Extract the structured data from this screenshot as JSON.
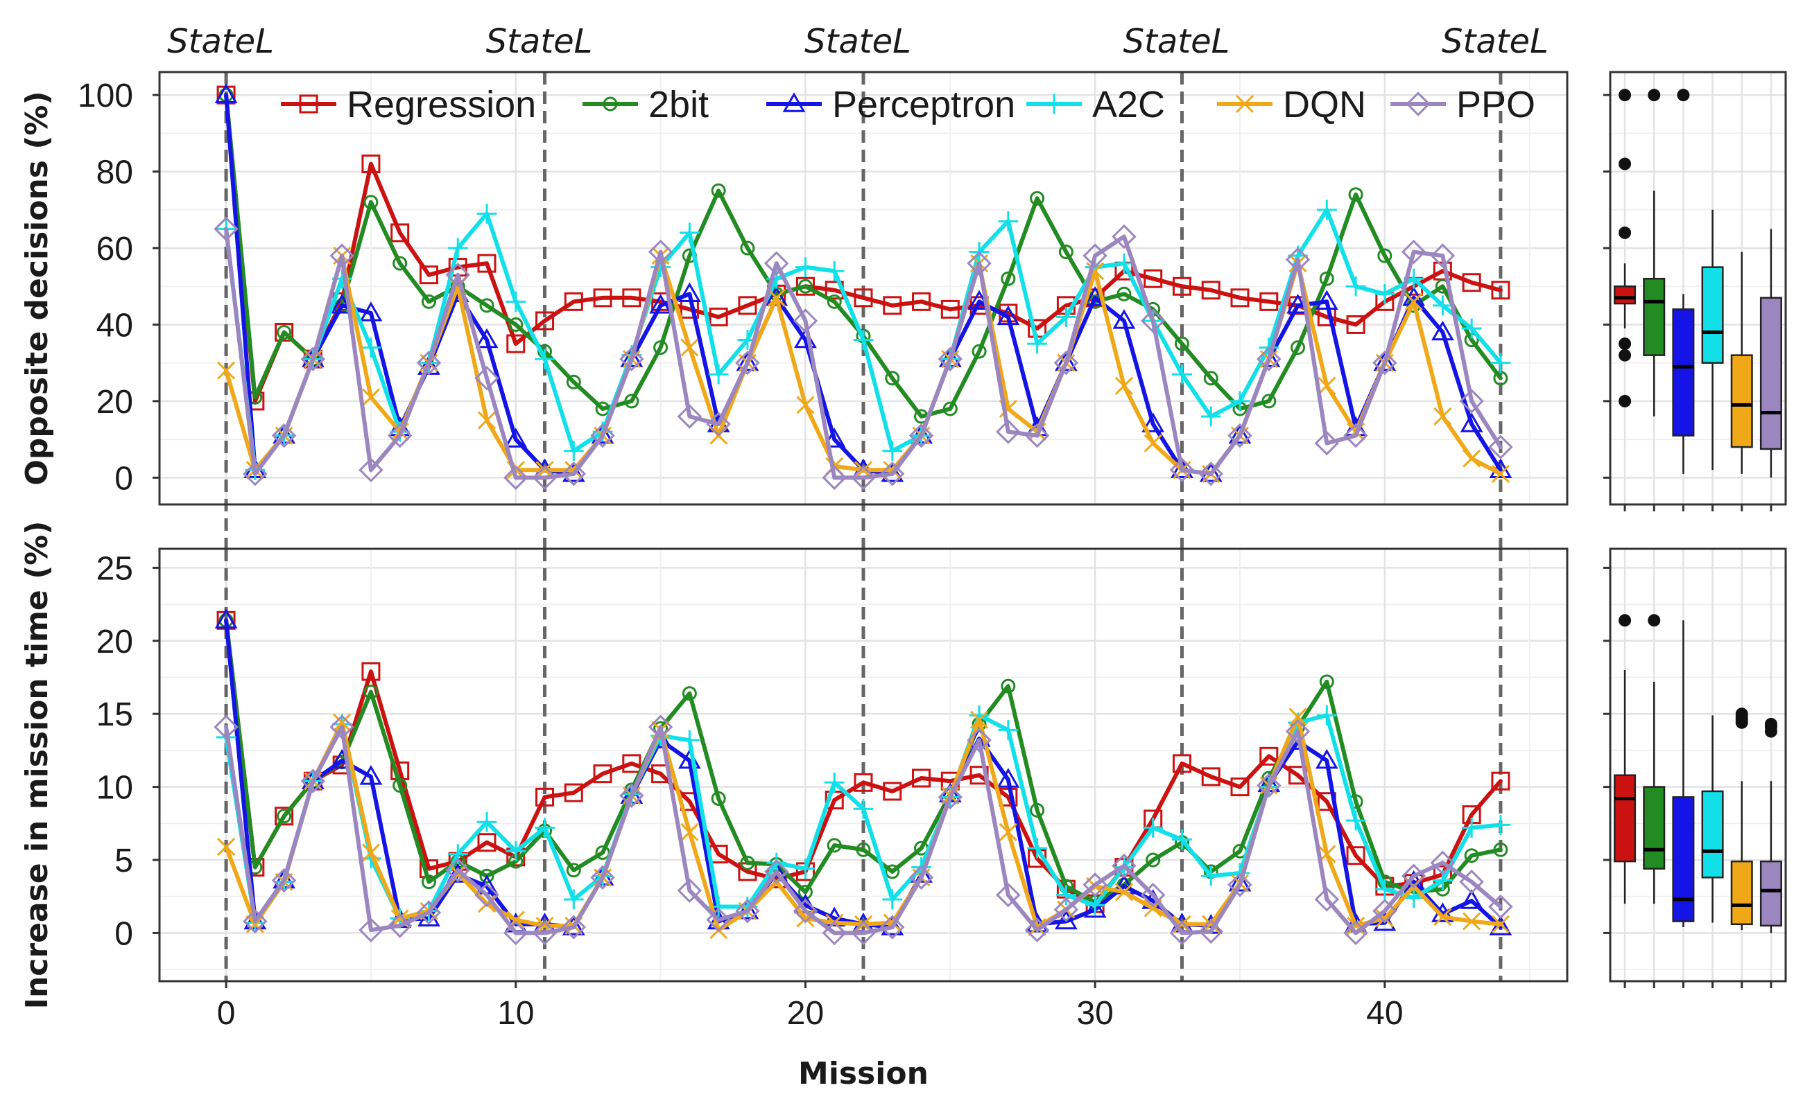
{
  "chart_data": {
    "type": "line",
    "xlabel": "Mission",
    "x_ticks": [
      0,
      10,
      20,
      30,
      40
    ],
    "xlim": [
      -2.3,
      46.3
    ],
    "grid": true,
    "legend_position": "top, inside top panel",
    "state_markers": {
      "label": "StateL",
      "x": [
        0,
        11,
        22,
        33,
        44
      ],
      "line_color": "#666666",
      "line_style": "dashed"
    },
    "series_styles": [
      {
        "name": "Regression",
        "color": "#cc1111",
        "marker": "square"
      },
      {
        "name": "2bit",
        "color": "#228b22",
        "marker": "circle"
      },
      {
        "name": "Perceptron",
        "color": "#1414e6",
        "marker": "triangle"
      },
      {
        "name": "A2C",
        "color": "#12e0e8",
        "marker": "plus"
      },
      {
        "name": "DQN",
        "color": "#f0a818",
        "marker": "cross"
      },
      {
        "name": "PPO",
        "color": "#9b86c0",
        "marker": "diamond"
      }
    ],
    "panels": [
      {
        "ylabel": "Opposite decisions (%)",
        "ylim": [
          -7,
          106
        ],
        "y_ticks": [
          0,
          20,
          40,
          60,
          80,
          100
        ],
        "series": [
          {
            "name": "Regression",
            "values": [
              100,
              20,
              38,
              31,
              46,
              82,
              64,
              53,
              55,
              56,
              35,
              41,
              46,
              47,
              47,
              46,
              44,
              42,
              45,
              48,
              50,
              49,
              47,
              45,
              46,
              44,
              45,
              43,
              39,
              45,
              47,
              54,
              52,
              50,
              49,
              47,
              46,
              45,
              42,
              40,
              46,
              50,
              54,
              51,
              49
            ]
          },
          {
            "name": "2bit",
            "values": [
              100,
              21,
              38,
              31,
              45,
              72,
              56,
              46,
              50,
              45,
              40,
              33,
              25,
              18,
              20,
              34,
              58,
              75,
              60,
              48,
              50,
              46,
              37,
              26,
              16,
              18,
              33,
              52,
              73,
              59,
              46,
              48,
              44,
              35,
              26,
              18,
              20,
              34,
              52,
              74,
              58,
              45,
              50,
              36,
              26
            ]
          },
          {
            "name": "Perceptron",
            "values": [
              100,
              2,
              11,
              31,
              45,
              43,
              13,
              29,
              48,
              36,
              10,
              2,
              1,
              11,
              31,
              45,
              48,
              14,
              30,
              47,
              36,
              10,
              2,
              1,
              11,
              31,
              46,
              42,
              13,
              30,
              47,
              41,
              14,
              2,
              1,
              11,
              31,
              45,
              46,
              13,
              30,
              47,
              38,
              14,
              2
            ]
          },
          {
            "name": "A2C",
            "values": [
              65,
              2,
              11,
              31,
              52,
              34,
              12,
              30,
              60,
              69,
              46,
              31,
              7,
              12,
              32,
              55,
              64,
              27,
              36,
              52,
              55,
              54,
              36,
              7,
              11,
              31,
              59,
              67,
              35,
              42,
              55,
              56,
              41,
              27,
              16,
              20,
              34,
              58,
              70,
              50,
              48,
              52,
              45,
              39,
              30
            ]
          },
          {
            "name": "DQN",
            "values": [
              28,
              2,
              11,
              31,
              58,
              21,
              12,
              30,
              50,
              15,
              2,
              2,
              2,
              11,
              31,
              58,
              34,
              11,
              30,
              47,
              19,
              3,
              2,
              2,
              11,
              31,
              56,
              18,
              12,
              30,
              54,
              24,
              9,
              2,
              1,
              11,
              31,
              56,
              24,
              12,
              30,
              46,
              16,
              5,
              1
            ]
          },
          {
            "name": "PPO",
            "values": [
              65,
              1,
              11,
              31,
              58,
              2,
              11,
              30,
              53,
              26,
              0,
              0,
              1,
              11,
              31,
              59,
              16,
              14,
              30,
              56,
              41,
              0,
              0,
              1,
              11,
              31,
              56,
              12,
              11,
              30,
              58,
              63,
              41,
              2,
              1,
              11,
              31,
              57,
              9,
              11,
              30,
              59,
              58,
              20,
              8
            ]
          }
        ],
        "boxplots": [
          {
            "name": "Regression",
            "q1": 45.5,
            "median": 47,
            "q3": 50,
            "whisker_low": 39,
            "whisker_high": 56,
            "outliers": [
              100,
              82,
              64,
              35,
              32,
              20
            ]
          },
          {
            "name": "2bit",
            "q1": 32,
            "median": 46,
            "q3": 52,
            "whisker_low": 16,
            "whisker_high": 75,
            "outliers": [
              100
            ]
          },
          {
            "name": "Perceptron",
            "q1": 11,
            "median": 29,
            "q3": 44,
            "whisker_low": 1,
            "whisker_high": 48,
            "outliers": [
              100
            ]
          },
          {
            "name": "A2C",
            "q1": 30,
            "median": 38,
            "q3": 55,
            "whisker_low": 2,
            "whisker_high": 70,
            "outliers": []
          },
          {
            "name": "DQN",
            "q1": 8,
            "median": 19,
            "q3": 32,
            "whisker_low": 1,
            "whisker_high": 59,
            "outliers": []
          },
          {
            "name": "PPO",
            "q1": 7.5,
            "median": 17,
            "q3": 47,
            "whisker_low": 0,
            "whisker_high": 65,
            "outliers": []
          }
        ]
      },
      {
        "ylabel": "Increase in mission time (%)",
        "ylim": [
          -3.3,
          26.3
        ],
        "y_ticks": [
          0,
          5,
          10,
          15,
          20,
          25
        ],
        "series": [
          {
            "name": "Regression",
            "values": [
              21.4,
              4.5,
              8,
              10.4,
              11.5,
              17.9,
              11.1,
              4.4,
              4.9,
              6.2,
              5.2,
              9.3,
              9.6,
              10.9,
              11.6,
              10.9,
              9,
              5.4,
              4.2,
              3.7,
              4.2,
              9.1,
              10.3,
              9.7,
              10.6,
              10.4,
              10.8,
              9.3,
              5.1,
              3,
              2,
              4.5,
              7.8,
              11.6,
              10.7,
              10,
              12.1,
              10.8,
              9,
              5.3,
              3.2,
              3.4,
              4,
              8.1,
              10.4
            ]
          },
          {
            "name": "2bit",
            "values": [
              21.4,
              4.5,
              8,
              10.4,
              11.7,
              16.5,
              10.1,
              3.5,
              4.9,
              3.9,
              4.9,
              7,
              4.3,
              5.5,
              9.8,
              14,
              16.4,
              9.2,
              4.8,
              4.7,
              2.8,
              6,
              5.7,
              4.2,
              5.8,
              9.5,
              14.3,
              16.9,
              8.4,
              3.2,
              2.1,
              3.3,
              5,
              6.2,
              4.2,
              5.6,
              10.6,
              14.1,
              17.2,
              9,
              3.5,
              2.8,
              3,
              5.3,
              5.7
            ]
          },
          {
            "name": "Perceptron",
            "values": [
              21.4,
              0.8,
              3.6,
              10.4,
              11.8,
              10.7,
              0.9,
              1,
              4,
              3.2,
              0.6,
              0.6,
              0.4,
              3.8,
              9.4,
              13.2,
              11.8,
              0.8,
              1.5,
              4.1,
              1.9,
              1,
              0.6,
              0.4,
              4,
              9.5,
              13.3,
              10.5,
              0.6,
              0.8,
              1.6,
              3.2,
              2.2,
              0.6,
              0.5,
              3.4,
              10.2,
              13.1,
              11.8,
              0.6,
              0.7,
              3.5,
              1.3,
              2.2,
              0.4
            ]
          },
          {
            "name": "A2C",
            "values": [
              13.4,
              0.7,
              3.5,
              10.4,
              14.3,
              5.1,
              1,
              1.5,
              5.4,
              7.6,
              5.6,
              7.2,
              2.3,
              3.9,
              9.5,
              13.5,
              13.2,
              1.8,
              1.8,
              4.8,
              4.4,
              10.3,
              8.5,
              2.3,
              4.5,
              9.3,
              14.9,
              13.9,
              5.8,
              2.6,
              1.9,
              4.5,
              7.2,
              6.4,
              3.9,
              4.1,
              10,
              14.4,
              14.9,
              7.7,
              3,
              2.4,
              3.6,
              7.2,
              7.4
            ]
          },
          {
            "name": "DQN",
            "values": [
              5.9,
              0.6,
              3.5,
              10.4,
              14.4,
              5.5,
              1,
              1.5,
              4.1,
              2,
              0.9,
              0.5,
              0.5,
              3.8,
              9.4,
              13.9,
              6.9,
              0.2,
              1.5,
              3.5,
              1,
              0.7,
              0.6,
              0.7,
              3.8,
              9.4,
              14.6,
              6.9,
              0.4,
              1.6,
              3.2,
              2.8,
              1.7,
              0.6,
              0.6,
              3.4,
              10.1,
              14.8,
              5.4,
              0.5,
              1,
              3.2,
              1.1,
              0.8,
              0.6
            ]
          },
          {
            "name": "PPO",
            "values": [
              14.1,
              0.8,
              3.6,
              10.4,
              14.1,
              0.2,
              0.5,
              1.4,
              4.3,
              2.6,
              0,
              0,
              0.4,
              3.8,
              9.4,
              14.1,
              2.9,
              0.9,
              1.5,
              4.2,
              1.5,
              0,
              0,
              0.4,
              3.8,
              9.3,
              13.2,
              2.6,
              0.2,
              1.6,
              3.3,
              4.6,
              2.6,
              0,
              0.1,
              3.3,
              10.1,
              13.8,
              2.3,
              0,
              1.5,
              3.9,
              4.8,
              3.5,
              1.8
            ]
          }
        ],
        "boxplots": [
          {
            "name": "Regression",
            "q1": 4.9,
            "median": 9.2,
            "q3": 10.8,
            "whisker_low": 2,
            "whisker_high": 18,
            "outliers": [
              21.4
            ]
          },
          {
            "name": "2bit",
            "q1": 4.4,
            "median": 5.7,
            "q3": 10,
            "whisker_low": 2,
            "whisker_high": 17.2,
            "outliers": [
              21.4
            ]
          },
          {
            "name": "Perceptron",
            "q1": 0.8,
            "median": 2.3,
            "q3": 9.3,
            "whisker_low": 0.4,
            "whisker_high": 21.4,
            "outliers": []
          },
          {
            "name": "A2C",
            "q1": 3.8,
            "median": 5.6,
            "q3": 9.7,
            "whisker_low": 0.7,
            "whisker_high": 14.9,
            "outliers": []
          },
          {
            "name": "DQN",
            "q1": 0.6,
            "median": 1.9,
            "q3": 4.9,
            "whisker_low": 0.2,
            "whisker_high": 10.4,
            "outliers": [
              14.4,
              14.6,
              14.8,
              15
            ]
          },
          {
            "name": "PPO",
            "q1": 0.5,
            "median": 2.9,
            "q3": 4.9,
            "whisker_low": 0,
            "whisker_high": 10.4,
            "outliers": [
              13.8,
              14.1,
              14.3
            ]
          }
        ]
      }
    ]
  }
}
